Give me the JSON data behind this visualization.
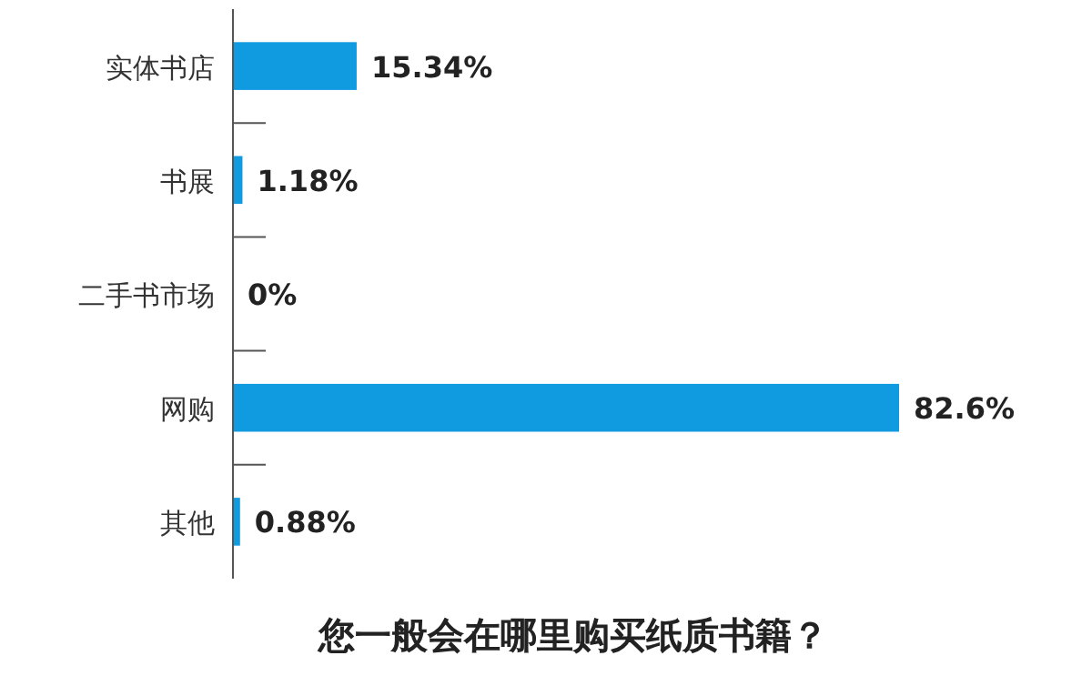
{
  "chart_data": {
    "type": "bar",
    "orientation": "horizontal",
    "title": "您一般会在哪里购买纸质书籍？",
    "categories": [
      "实体书店",
      "书展",
      "二手书市场",
      "网购",
      "其他"
    ],
    "values": [
      15.34,
      1.18,
      0,
      82.6,
      0.88
    ],
    "value_labels": [
      "15.34%",
      "1.18%",
      "0%",
      "82.6%",
      "0.88%"
    ],
    "color": "#109be0"
  }
}
